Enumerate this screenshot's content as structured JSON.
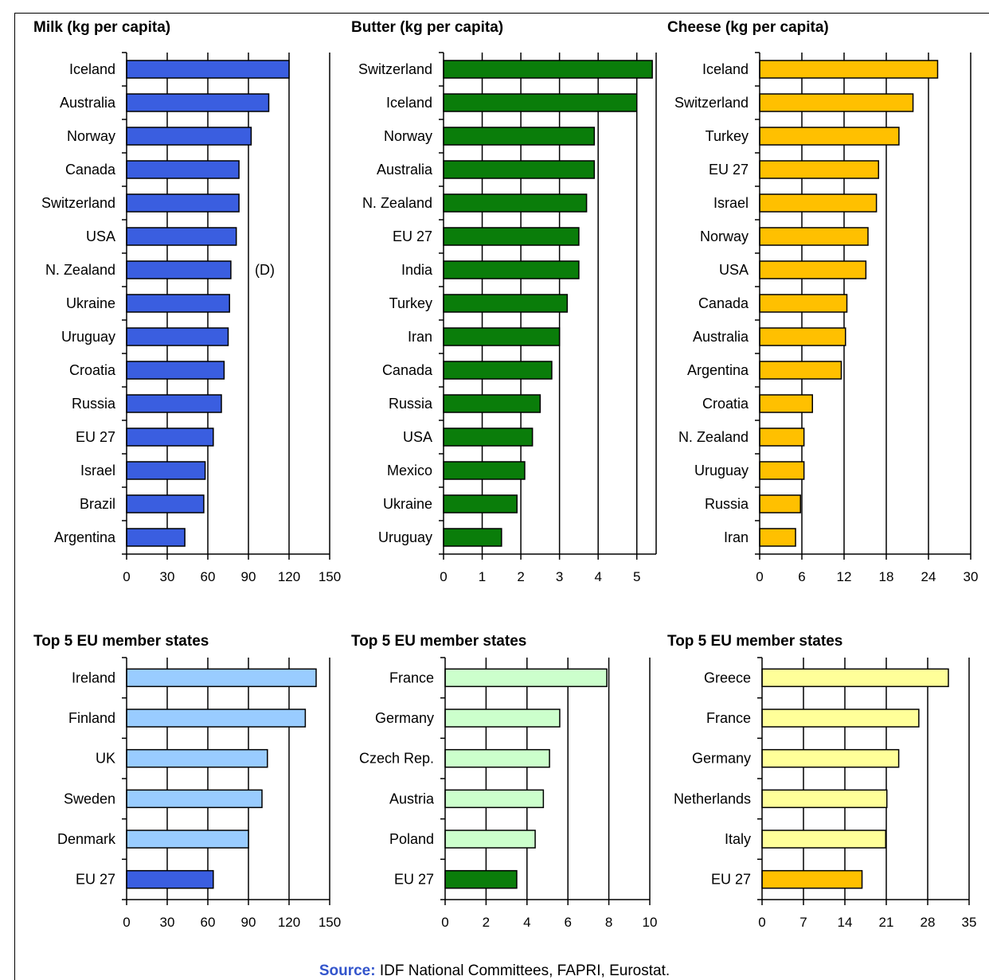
{
  "source": {
    "label": "Source:",
    "text": "IDF National Committees, FAPRI, Eurostat."
  },
  "chart_data": [
    {
      "type": "bar",
      "orientation": "horizontal",
      "title": "Milk (kg per capita)",
      "categories": [
        "Iceland",
        "Australia",
        "Norway",
        "Canada",
        "Switzerland",
        "USA",
        "N. Zealand",
        "Ukraine",
        "Uruguay",
        "Croatia",
        "Russia",
        "EU 27",
        "Israel",
        "Brazil",
        "Argentina"
      ],
      "values": [
        120,
        105,
        92,
        83,
        83,
        81,
        77,
        76,
        75,
        72,
        70,
        64,
        58,
        57,
        43
      ],
      "xlim": [
        0,
        150
      ],
      "xticks": [
        "0",
        "30",
        "60",
        "90",
        "120",
        "150"
      ],
      "grid": true,
      "color": "#3a5ee0",
      "annotation": "(D)"
    },
    {
      "type": "bar",
      "orientation": "horizontal",
      "title": "Butter (kg per capita)",
      "categories": [
        "Switzerland",
        "Iceland",
        "Norway",
        "Australia",
        "N. Zealand",
        "EU 27",
        "India",
        "Turkey",
        "Iran",
        "Canada",
        "Russia",
        "USA",
        "Mexico",
        "Ukraine",
        "Uruguay"
      ],
      "values": [
        5.4,
        5.0,
        3.9,
        3.9,
        3.7,
        3.5,
        3.5,
        3.2,
        3.0,
        2.8,
        2.5,
        2.3,
        2.1,
        1.9,
        1.5
      ],
      "xlim": [
        0,
        5.5
      ],
      "xticks": [
        "0",
        "1",
        "2",
        "3",
        "4",
        "5"
      ],
      "grid": true,
      "color": "#0a7d0a"
    },
    {
      "type": "bar",
      "orientation": "horizontal",
      "title": "Cheese (kg per capita)",
      "categories": [
        "Iceland",
        "Switzerland",
        "Turkey",
        "EU 27",
        "Israel",
        "Norway",
        "USA",
        "Canada",
        "Australia",
        "Argentina",
        "Croatia",
        "N. Zealand",
        "Uruguay",
        "Russia",
        "Iran"
      ],
      "values": [
        25.3,
        21.8,
        19.8,
        16.9,
        16.6,
        15.4,
        15.1,
        12.4,
        12.2,
        11.6,
        7.5,
        6.3,
        6.3,
        5.8,
        5.1
      ],
      "xlim": [
        0,
        30
      ],
      "xticks": [
        "0",
        "6",
        "12",
        "18",
        "24",
        "30"
      ],
      "grid": true,
      "color": "#ffc000"
    },
    {
      "type": "bar",
      "orientation": "horizontal",
      "title": "Top 5 EU member states",
      "categories": [
        "Ireland",
        "Finland",
        "UK",
        "Sweden",
        "Denmark",
        "EU 27"
      ],
      "values": [
        140,
        132,
        104,
        100,
        90,
        64
      ],
      "xlim": [
        0,
        150
      ],
      "xticks": [
        "0",
        "30",
        "60",
        "90",
        "120",
        "150"
      ],
      "grid": true,
      "color": "#99ccff",
      "highlight_color": "#3a5ee0"
    },
    {
      "type": "bar",
      "orientation": "horizontal",
      "title": "Top 5 EU member states",
      "categories": [
        "France",
        "Germany",
        "Czech Rep.",
        "Austria",
        "Poland",
        "EU 27"
      ],
      "values": [
        7.9,
        5.6,
        5.1,
        4.8,
        4.4,
        3.5
      ],
      "xlim": [
        0,
        10
      ],
      "xticks": [
        "0",
        "2",
        "4",
        "6",
        "8",
        "10"
      ],
      "grid": true,
      "color": "#ccffcc",
      "highlight_color": "#0a7d0a"
    },
    {
      "type": "bar",
      "orientation": "horizontal",
      "title": "Top 5 EU member states",
      "categories": [
        "Greece",
        "France",
        "Germany",
        "Netherlands",
        "Italy",
        "EU 27"
      ],
      "values": [
        31.5,
        26.5,
        23.1,
        21.1,
        20.9,
        16.9
      ],
      "xlim": [
        0,
        35
      ],
      "xticks": [
        "0",
        "7",
        "14",
        "21",
        "28",
        "35"
      ],
      "grid": true,
      "color": "#ffff99",
      "highlight_color": "#ffc000"
    }
  ]
}
